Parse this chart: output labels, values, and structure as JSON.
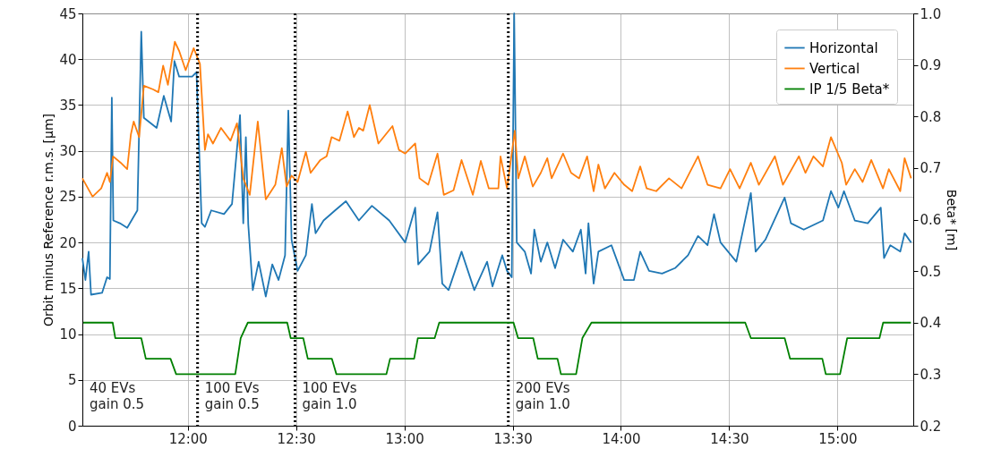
{
  "chart_data": {
    "type": "line",
    "ylabel": "Orbit minus Reference r.m.s. [μm]",
    "y2label": "Beta* [m]",
    "xlim": [
      11.513,
      15.35
    ],
    "xticks": [
      {
        "value": 12,
        "label": "12:00"
      },
      {
        "value": 12.5,
        "label": "12:30"
      },
      {
        "value": 13,
        "label": "13:00"
      },
      {
        "value": 13.5,
        "label": "13:30"
      },
      {
        "value": 14,
        "label": "14:00"
      },
      {
        "value": 14.5,
        "label": "14:30"
      },
      {
        "value": 15,
        "label": "15:00"
      }
    ],
    "ylim": [
      0,
      45
    ],
    "yticks": [
      0,
      5,
      10,
      15,
      20,
      25,
      30,
      35,
      40,
      45
    ],
    "y2lim": [
      0.2,
      1.0
    ],
    "y2ticks": [
      {
        "value": 0.2,
        "label": "0.2"
      },
      {
        "value": 0.3,
        "label": "0.3"
      },
      {
        "value": 0.4,
        "label": "0.4"
      },
      {
        "value": 0.5,
        "label": "0.5"
      },
      {
        "value": 0.6,
        "label": "0.6"
      },
      {
        "value": 0.7,
        "label": "0.7"
      },
      {
        "value": 0.8,
        "label": "0.8"
      },
      {
        "value": 0.9,
        "label": "0.9"
      },
      {
        "value": 1.0,
        "label": "1.0"
      }
    ],
    "grid": true,
    "legend": "top right",
    "marker": "none",
    "line_style": "solid",
    "series": [
      {
        "name": "Horizontal",
        "color": "#1f77b4",
        "x": [
          11.513,
          11.527,
          11.542,
          11.553,
          11.604,
          11.627,
          11.64,
          11.649,
          11.656,
          11.686,
          11.72,
          11.767,
          11.785,
          11.797,
          11.856,
          11.889,
          11.923,
          11.938,
          11.96,
          12.02,
          12.04,
          12.064,
          12.079,
          12.108,
          12.167,
          12.204,
          12.241,
          12.256,
          12.268,
          12.279,
          12.3,
          12.327,
          12.36,
          12.39,
          12.419,
          12.449,
          12.464,
          12.479,
          12.507,
          12.545,
          12.573,
          12.59,
          12.627,
          12.68,
          12.73,
          12.79,
          12.85,
          12.93,
          13.004,
          13.05,
          13.064,
          13.116,
          13.153,
          13.175,
          13.204,
          13.264,
          13.323,
          13.382,
          13.407,
          13.452,
          13.474,
          13.496,
          13.507,
          13.519,
          13.556,
          13.585,
          13.6,
          13.63,
          13.66,
          13.696,
          13.733,
          13.778,
          13.815,
          13.837,
          13.85,
          13.874,
          13.896,
          13.956,
          14.015,
          14.06,
          14.089,
          14.13,
          14.19,
          14.25,
          14.31,
          14.356,
          14.4,
          14.43,
          14.46,
          14.533,
          14.6,
          14.622,
          14.667,
          14.756,
          14.785,
          14.844,
          14.933,
          14.97,
          15.004,
          15.03,
          15.08,
          15.14,
          15.2,
          15.215,
          15.244,
          15.29,
          15.31,
          15.34
        ],
        "values": [
          18.3,
          15.9,
          19.0,
          14.3,
          14.5,
          16.2,
          16.0,
          35.8,
          22.4,
          22.1,
          21.6,
          23.5,
          43.0,
          33.6,
          32.5,
          36.0,
          33.2,
          39.8,
          38.1,
          38.1,
          38.6,
          22.1,
          21.7,
          23.5,
          23.1,
          24.2,
          33.9,
          22.1,
          31.5,
          22.0,
          14.8,
          17.9,
          14.1,
          17.6,
          15.9,
          18.6,
          34.4,
          20.3,
          16.9,
          18.6,
          24.2,
          21.0,
          22.4,
          23.5,
          24.5,
          22.4,
          24.0,
          22.4,
          20.0,
          23.8,
          17.6,
          19.0,
          23.3,
          15.5,
          14.8,
          19.0,
          14.8,
          17.9,
          15.2,
          18.6,
          16.9,
          16.2,
          45.0,
          20.0,
          19.0,
          16.6,
          21.4,
          17.9,
          20.0,
          17.2,
          20.3,
          19.0,
          21.4,
          16.6,
          22.1,
          15.5,
          19.0,
          19.7,
          15.9,
          15.9,
          19.0,
          16.9,
          16.6,
          17.2,
          18.6,
          20.7,
          19.7,
          23.1,
          20.0,
          17.9,
          25.4,
          19.0,
          20.3,
          24.9,
          22.1,
          21.4,
          22.4,
          25.6,
          23.8,
          25.6,
          22.4,
          22.1,
          23.8,
          18.3,
          19.7,
          19.0,
          21.0,
          20.0
        ]
      },
      {
        "name": "Vertical",
        "color": "#ff7f0e",
        "x": [
          11.513,
          11.56,
          11.6,
          11.627,
          11.64,
          11.655,
          11.69,
          11.72,
          11.737,
          11.75,
          11.775,
          11.797,
          11.84,
          11.864,
          11.886,
          11.908,
          11.94,
          11.96,
          11.99,
          12.027,
          12.056,
          12.079,
          12.093,
          12.116,
          12.153,
          12.197,
          12.227,
          12.256,
          12.286,
          12.323,
          12.36,
          12.404,
          12.434,
          12.456,
          12.479,
          12.507,
          12.545,
          12.567,
          12.612,
          12.641,
          12.664,
          12.7,
          12.738,
          12.767,
          12.79,
          12.81,
          12.84,
          12.88,
          12.945,
          12.975,
          13.004,
          13.05,
          13.07,
          13.11,
          13.153,
          13.182,
          13.227,
          13.264,
          13.316,
          13.353,
          13.39,
          13.434,
          13.444,
          13.474,
          13.51,
          13.526,
          13.556,
          13.593,
          13.63,
          13.66,
          13.68,
          13.733,
          13.77,
          13.807,
          13.844,
          13.874,
          13.896,
          13.926,
          13.97,
          14.015,
          14.052,
          14.089,
          14.119,
          14.163,
          14.222,
          14.28,
          14.356,
          14.4,
          14.46,
          14.504,
          14.548,
          14.6,
          14.637,
          14.711,
          14.748,
          14.822,
          14.852,
          14.889,
          14.933,
          14.97,
          15.02,
          15.04,
          15.08,
          15.116,
          15.156,
          15.21,
          15.237,
          15.29,
          15.31,
          15.34
        ],
        "values": [
          27.0,
          25.0,
          25.9,
          27.6,
          26.6,
          29.4,
          28.7,
          28.0,
          31.8,
          33.2,
          31.5,
          37.1,
          36.7,
          36.4,
          39.3,
          37.2,
          41.9,
          40.9,
          38.8,
          41.2,
          39.5,
          30.1,
          31.8,
          30.8,
          32.5,
          31.1,
          33.0,
          27.0,
          25.2,
          33.2,
          24.7,
          26.3,
          30.3,
          26.1,
          27.3,
          26.6,
          29.9,
          27.6,
          29.0,
          29.4,
          31.5,
          31.1,
          34.3,
          31.5,
          32.5,
          32.2,
          35.0,
          30.8,
          32.7,
          30.1,
          29.7,
          30.8,
          27.0,
          26.3,
          29.7,
          25.2,
          25.7,
          29.0,
          25.2,
          28.9,
          25.9,
          25.9,
          29.4,
          25.9,
          32.2,
          27.0,
          29.4,
          26.1,
          27.6,
          29.2,
          27.0,
          29.7,
          27.6,
          27.0,
          29.4,
          25.6,
          28.5,
          25.9,
          27.6,
          26.3,
          25.6,
          28.3,
          25.9,
          25.6,
          27.0,
          25.9,
          29.4,
          26.3,
          25.9,
          28.0,
          25.9,
          28.7,
          26.3,
          29.4,
          26.3,
          29.4,
          27.6,
          29.4,
          28.3,
          31.5,
          28.7,
          26.3,
          28.0,
          26.6,
          29.0,
          25.9,
          28.0,
          25.6,
          29.2,
          27.0
        ]
      },
      {
        "name": "IP 1/5 Beta*",
        "color": "#008000",
        "axis": "y2",
        "x": [
          11.517,
          11.653,
          11.665,
          11.785,
          11.806,
          11.92,
          11.946,
          12.219,
          12.244,
          12.277,
          12.459,
          12.475,
          12.533,
          12.554,
          12.665,
          12.686,
          12.917,
          12.934,
          13.045,
          13.062,
          13.14,
          13.161,
          13.504,
          13.525,
          13.595,
          13.616,
          13.707,
          13.723,
          13.793,
          13.822,
          13.864,
          14.574,
          14.6,
          14.756,
          14.781,
          14.93,
          14.946,
          15.012,
          15.045,
          15.194,
          15.211,
          15.339
        ],
        "values": [
          0.4,
          0.4,
          0.37,
          0.37,
          0.33,
          0.33,
          0.3,
          0.3,
          0.37,
          0.4,
          0.4,
          0.37,
          0.37,
          0.33,
          0.33,
          0.3,
          0.3,
          0.33,
          0.33,
          0.37,
          0.37,
          0.4,
          0.4,
          0.37,
          0.37,
          0.33,
          0.33,
          0.3,
          0.3,
          0.37,
          0.4,
          0.4,
          0.37,
          0.37,
          0.33,
          0.33,
          0.3,
          0.3,
          0.37,
          0.37,
          0.4,
          0.4
        ]
      }
    ],
    "ref_lines": [
      {
        "axis": "x",
        "value": 12.045,
        "color": "#000000",
        "line_style": "dotted"
      },
      {
        "axis": "x",
        "value": 12.495,
        "color": "#000000",
        "line_style": "dotted"
      },
      {
        "axis": "x",
        "value": 13.48,
        "color": "#000000",
        "line_style": "dotted"
      }
    ],
    "annotations": [
      "40 EVs\ngain 0.5",
      "100 EVs\ngain 0.5",
      "100 EVs\ngain 1.0",
      "200 EVs\ngain 1.0"
    ]
  }
}
